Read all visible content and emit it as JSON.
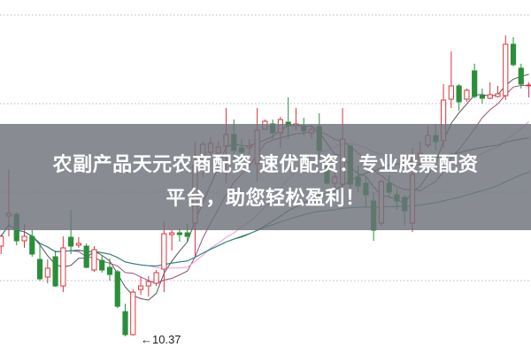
{
  "chart_data": {
    "type": "candlestick",
    "title": "",
    "xlabel": "",
    "ylabel": "",
    "ylim": [
      10.16,
      14.17
    ],
    "grid": {
      "horizontal": true,
      "style": "dotted",
      "levels": [
        11,
        12,
        13,
        14
      ]
    },
    "colors": {
      "up": "#d9363e",
      "down": "#2a8f3a",
      "grid": "#bbbbbb"
    },
    "moving_averages": [
      {
        "period": 5,
        "color": "#555555"
      },
      {
        "period": 10,
        "color": "#9a4f7a"
      },
      {
        "period": 20,
        "color": "#e59ae5"
      },
      {
        "period": 30,
        "color": "#2f6e2f"
      },
      {
        "period": 60,
        "color": "#2f8585"
      }
    ],
    "low_annotation": {
      "label": "10.37",
      "candle_index": 16
    },
    "ohlc": [
      [
        11.39,
        11.5,
        11.52,
        11.3
      ],
      [
        11.73,
        11.76,
        12.25,
        11.5
      ],
      [
        11.75,
        11.45,
        11.77,
        11.4
      ],
      [
        11.45,
        11.5,
        11.64,
        11.37
      ],
      [
        11.5,
        11.3,
        11.57,
        11.27
      ],
      [
        11.24,
        11.02,
        11.4,
        11.0
      ],
      [
        11.04,
        11.14,
        11.24,
        10.97
      ],
      [
        11.27,
        10.94,
        11.34,
        10.93
      ],
      [
        10.94,
        11.37,
        11.5,
        10.87
      ],
      [
        11.49,
        11.39,
        11.8,
        11.3
      ],
      [
        11.4,
        11.42,
        11.49,
        11.37
      ],
      [
        11.39,
        11.15,
        11.42,
        11.14
      ],
      [
        11.12,
        11.35,
        11.39,
        11.1
      ],
      [
        11.23,
        11.12,
        11.29,
        11.09
      ],
      [
        11.15,
        11.07,
        11.25,
        11.0
      ],
      [
        11.1,
        10.71,
        11.12,
        10.69
      ],
      [
        10.65,
        10.39,
        10.74,
        10.37
      ],
      [
        10.39,
        10.87,
        10.9,
        10.38
      ],
      [
        10.9,
        10.94,
        11.04,
        10.84
      ],
      [
        10.94,
        10.99,
        11.05,
        10.82
      ],
      [
        10.97,
        11.09,
        11.12,
        10.94
      ],
      [
        11.13,
        11.53,
        11.67,
        10.87
      ],
      [
        11.52,
        11.54,
        11.57,
        11.34
      ],
      [
        11.54,
        11.52,
        11.59,
        11.44
      ],
      [
        11.54,
        11.5,
        11.64,
        11.44
      ],
      [
        11.65,
        12.3,
        12.57,
        11.27
      ],
      [
        12.3,
        12.54,
        12.57,
        12.17
      ],
      [
        12.45,
        12.55,
        12.62,
        12.38
      ],
      [
        12.44,
        12.51,
        12.57,
        12.37
      ],
      [
        12.52,
        12.65,
        12.95,
        12.1
      ],
      [
        12.65,
        12.47,
        12.82,
        12.37
      ],
      [
        12.5,
        12.45,
        12.6,
        12.35
      ],
      [
        12.5,
        12.52,
        12.6,
        12.4
      ],
      [
        12.32,
        12.7,
        12.95,
        12.12
      ],
      [
        12.71,
        12.8,
        12.82,
        12.7
      ],
      [
        12.77,
        12.67,
        12.82,
        12.6
      ],
      [
        12.67,
        12.82,
        12.85,
        12.5
      ],
      [
        12.79,
        12.75,
        13.07,
        12.6
      ],
      [
        12.75,
        12.77,
        12.95,
        12.7
      ],
      [
        12.75,
        12.69,
        12.84,
        12.64
      ],
      [
        12.67,
        12.71,
        12.74,
        12.6
      ],
      [
        12.74,
        12.47,
        12.89,
        12.37
      ],
      [
        12.34,
        12.1,
        12.35,
        12.09
      ],
      [
        12.1,
        12.17,
        12.24,
        12.0
      ],
      [
        12.09,
        12.6,
        12.95,
        11.84
      ],
      [
        12.52,
        12.09,
        12.54,
        12.04
      ],
      [
        12.17,
        12.07,
        12.3,
        12.0
      ],
      [
        12.1,
        11.97,
        12.17,
        11.84
      ],
      [
        11.9,
        11.57,
        12.0,
        11.45
      ],
      [
        11.65,
        12.12,
        12.14,
        11.62
      ],
      [
        12.1,
        12.0,
        12.19,
        11.94
      ],
      [
        11.97,
        11.9,
        12.04,
        11.8
      ],
      [
        11.94,
        11.79,
        11.97,
        11.62
      ],
      [
        11.65,
        12.2,
        12.5,
        11.55
      ],
      [
        12.32,
        12.44,
        12.57,
        12.3
      ],
      [
        12.53,
        12.64,
        12.75,
        12.5
      ],
      [
        12.64,
        12.57,
        12.77,
        12.47
      ],
      [
        12.58,
        13.04,
        13.22,
        12.5
      ],
      [
        13.05,
        13.2,
        13.59,
        12.95
      ],
      [
        13.2,
        13.02,
        13.22,
        12.92
      ],
      [
        13.05,
        13.15,
        13.17,
        13.02
      ],
      [
        13.37,
        13.08,
        13.45,
        13.06
      ],
      [
        13.09,
        13.06,
        13.17,
        13.0
      ],
      [
        13.06,
        13.1,
        13.24,
        13.05
      ],
      [
        13.08,
        13.11,
        13.2,
        13.07
      ],
      [
        13.09,
        13.67,
        13.77,
        13.04
      ],
      [
        13.67,
        13.44,
        13.75,
        13.42
      ],
      [
        13.4,
        13.22,
        13.45,
        13.17
      ],
      [
        13.2,
        13.21,
        13.24,
        13.07
      ]
    ]
  },
  "banner": {
    "line1": "农副产品天元农商配资 速优配资：专业股票配资",
    "line2": "平台，助您轻松盈利！"
  }
}
